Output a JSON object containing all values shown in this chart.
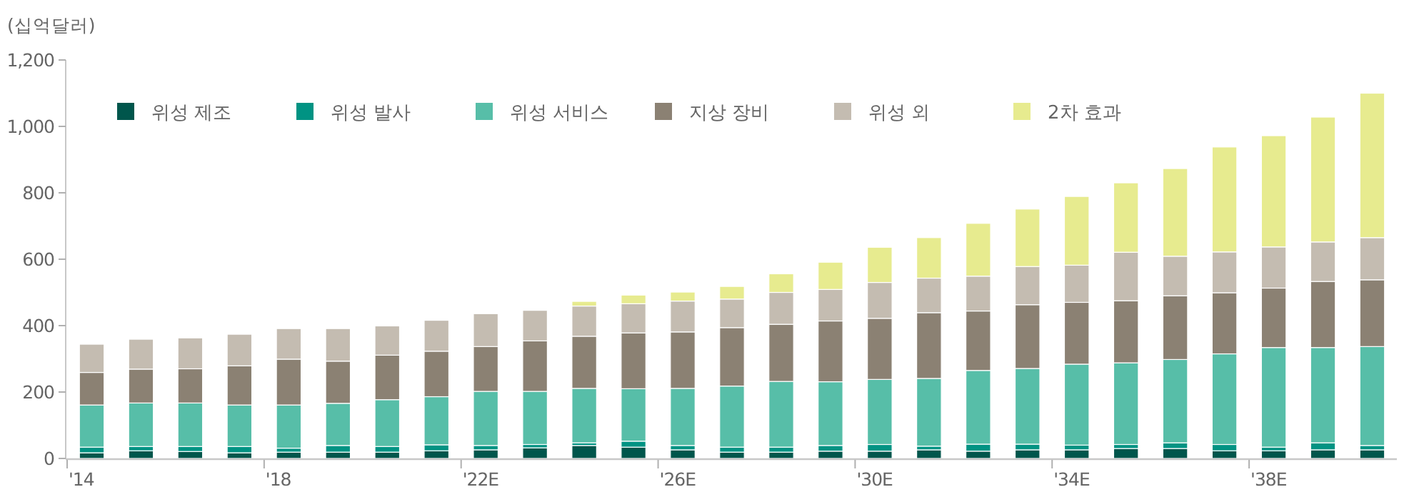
{
  "chart_data": {
    "type": "bar",
    "stacked": true,
    "ylabel": "(십억달러)",
    "categories": [
      "'14",
      null,
      null,
      null,
      "'18",
      null,
      null,
      null,
      "'22E",
      null,
      null,
      null,
      "'26E",
      null,
      null,
      null,
      "'30E",
      null,
      null,
      null,
      "'34E",
      null,
      null,
      null,
      "'38E",
      null,
      null
    ],
    "ylim": [
      0,
      1200
    ],
    "yticks": [
      0,
      200,
      400,
      600,
      800,
      {
        "value": 1000,
        "label": "1,000"
      },
      {
        "value": 1200,
        "label": "1,200"
      }
    ],
    "legend": "top",
    "series": [
      {
        "name": "위성 제조",
        "color": "#00564c",
        "values": [
          17,
          23,
          21,
          17,
          19,
          19,
          19,
          23,
          26,
          32,
          39,
          34,
          26,
          19,
          19,
          22,
          22,
          26,
          22,
          26,
          26,
          30,
          30,
          23,
          23,
          26,
          26
        ]
      },
      {
        "name": "위성 발사",
        "color": "#009383",
        "values": [
          17,
          13,
          15,
          19,
          12,
          20,
          17,
          18,
          13,
          10,
          8,
          18,
          13,
          15,
          15,
          17,
          20,
          11,
          21,
          17,
          14,
          12,
          17,
          19,
          11,
          21,
          13
        ]
      },
      {
        "name": "위성 서비스",
        "color": "#57bea8",
        "values": [
          127,
          131,
          131,
          125,
          130,
          127,
          141,
          145,
          163,
          160,
          164,
          158,
          172,
          184,
          198,
          192,
          196,
          204,
          222,
          228,
          244,
          246,
          251,
          273,
          300,
          287,
          298
        ]
      },
      {
        "name": "지상 장비",
        "color": "#8b8173",
        "values": [
          98,
          102,
          103,
          118,
          138,
          127,
          134,
          137,
          135,
          152,
          157,
          168,
          170,
          176,
          172,
          183,
          184,
          198,
          179,
          192,
          186,
          187,
          192,
          184,
          179,
          199,
          201
        ]
      },
      {
        "name": "위성 외",
        "color": "#c4bcb1",
        "values": [
          85,
          90,
          93,
          95,
          92,
          98,
          88,
          93,
          99,
          92,
          91,
          88,
          93,
          86,
          96,
          95,
          108,
          104,
          105,
          115,
          112,
          146,
          119,
          123,
          124,
          119,
          127
        ]
      },
      {
        "name": "2차 효과",
        "color": "#e7eb8f",
        "values": [
          null,
          null,
          null,
          null,
          null,
          null,
          null,
          null,
          null,
          null,
          14,
          26,
          27,
          38,
          56,
          82,
          106,
          122,
          159,
          173,
          207,
          209,
          264,
          316,
          335,
          376,
          435
        ]
      }
    ]
  }
}
